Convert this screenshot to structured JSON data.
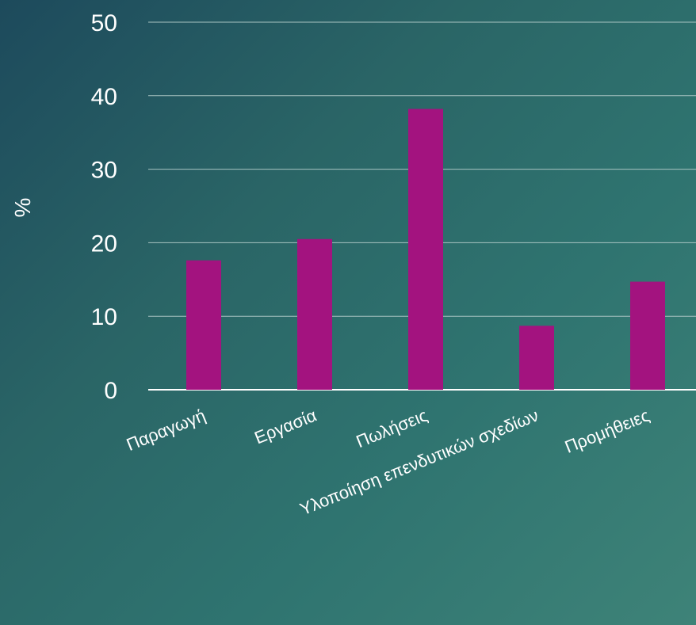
{
  "chart_data": {
    "type": "bar",
    "title": "",
    "xlabel": "",
    "ylabel": "%",
    "ylim": [
      0,
      50
    ],
    "yticks": [
      0,
      10,
      20,
      30,
      40,
      50
    ],
    "grid": true,
    "legend": "none",
    "categories": [
      "Παραγωγή",
      "Εργασία",
      "Πωλήσεις",
      "Υλοποίηση επενδυτικών σχεδίων",
      "Προμήθειες"
    ],
    "values": [
      17.6,
      20.5,
      38.2,
      8.7,
      14.7
    ],
    "colors": {
      "bar": "#a3137f",
      "grid": "#a9c4c2",
      "axis": "#ffffff",
      "text": "#ffffff"
    }
  }
}
